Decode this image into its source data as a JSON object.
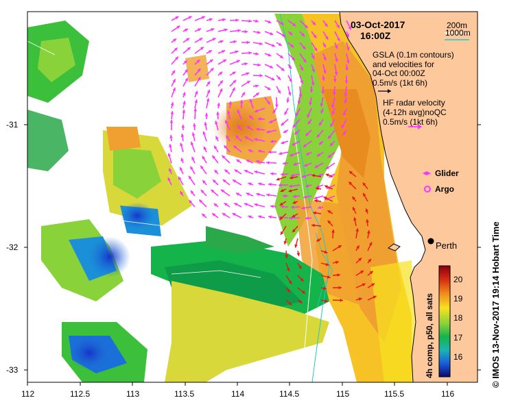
{
  "map": {
    "lon_ticks": [
      "112",
      "112.5",
      "113",
      "113.5",
      "114",
      "114.5",
      "115",
      "115.5",
      "116"
    ],
    "lat_ticks": [
      "-31",
      "-32",
      "-33"
    ],
    "colors": {
      "land": "#fcc89c",
      "coast": "#000000",
      "contour_200m": "#ffffff",
      "contour_1000m": "#22c8c8",
      "radar_vector": "#ff33ff",
      "gsla_vector": "#ee1111"
    }
  },
  "annotations": {
    "date": "03-Oct-2017",
    "time": "16:00Z",
    "contour_200": "200m",
    "contour_1000": "1000m",
    "gsla_line1": "GSLA (0.1m contours)",
    "gsla_line2": "and velocities for",
    "gsla_line3": "04-Oct 00:00Z",
    "gsla_line4": "0.5m/s (1kt 6h)",
    "hf_line1": "HF radar velocity",
    "hf_line2": "(4-12h avg)noQC",
    "hf_line3": "0.5m/s (1kt 6h)",
    "glider": "Glider",
    "argo": "Argo",
    "city": "Perth"
  },
  "colorbar": {
    "label": "4h comp, p50, all sats",
    "ticks": [
      "20",
      "19",
      "18",
      "17",
      "16"
    ]
  },
  "credit": "© IMOS 13-Nov-2017 19:14 Hobart Time"
}
